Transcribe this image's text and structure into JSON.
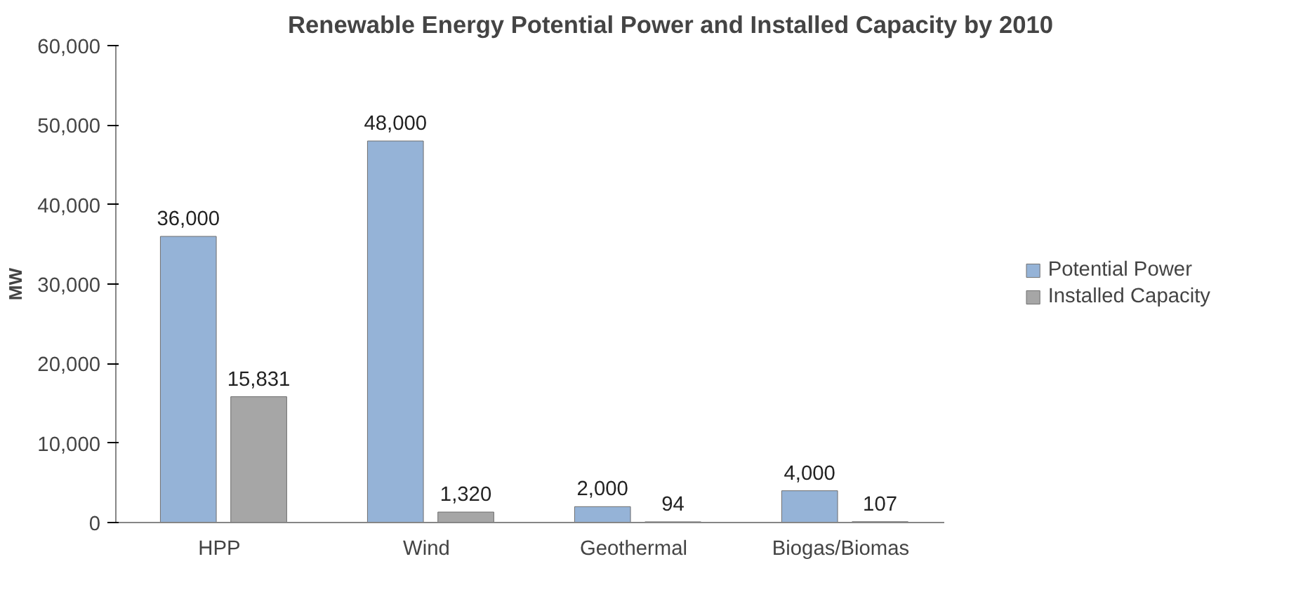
{
  "chart_data": {
    "type": "bar",
    "title": "Renewable Energy Potential Power and Installed Capacity by 2010",
    "ylabel": "MW",
    "categories": [
      "HPP",
      "Wind",
      "Geothermal",
      "Biogas/Biomas"
    ],
    "series": [
      {
        "name": "Potential Power",
        "color": "#95b3d7",
        "values": [
          36000,
          48000,
          2000,
          4000
        ],
        "value_labels": [
          "36,000",
          "48,000",
          "2,000",
          "4,000"
        ]
      },
      {
        "name": "Installed Capacity",
        "color": "#a6a6a6",
        "values": [
          15831,
          1320,
          94,
          107
        ],
        "value_labels": [
          "15,831",
          "1,320",
          "94",
          "107"
        ]
      }
    ],
    "ylim": [
      0,
      60000
    ],
    "yticks": [
      {
        "value": 0,
        "label": "0"
      },
      {
        "value": 10000,
        "label": "10,000"
      },
      {
        "value": 20000,
        "label": "20,000"
      },
      {
        "value": 30000,
        "label": "30,000"
      },
      {
        "value": 40000,
        "label": "40,000"
      },
      {
        "value": 50000,
        "label": "50,000"
      },
      {
        "value": 60000,
        "label": "60,000"
      }
    ],
    "grid": false,
    "legend": "right"
  }
}
